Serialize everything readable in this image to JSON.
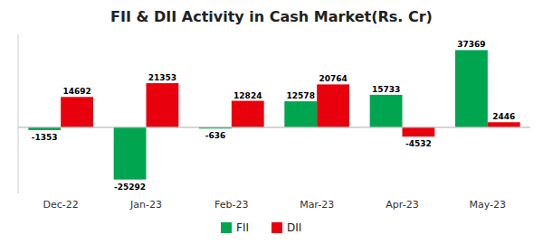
{
  "chart_data": {
    "type": "bar",
    "title": "FII & DII Activity in Cash Market(Rs. Cr)",
    "categories": [
      "Dec-22",
      "Jan-23",
      "Feb-23",
      "Mar-23",
      "Apr-23",
      "May-23"
    ],
    "series": [
      {
        "name": "FII",
        "color": "#00a550",
        "values": [
          -1353,
          -25292,
          -636,
          12578,
          15733,
          37369
        ]
      },
      {
        "name": "DII",
        "color": "#e8000d",
        "values": [
          14692,
          21353,
          12824,
          20764,
          -4532,
          2446
        ]
      }
    ],
    "ylim": [
      -32000,
      45000
    ],
    "grid": false,
    "legend": "bottom",
    "data_labels": true,
    "tick_labels": "x"
  }
}
